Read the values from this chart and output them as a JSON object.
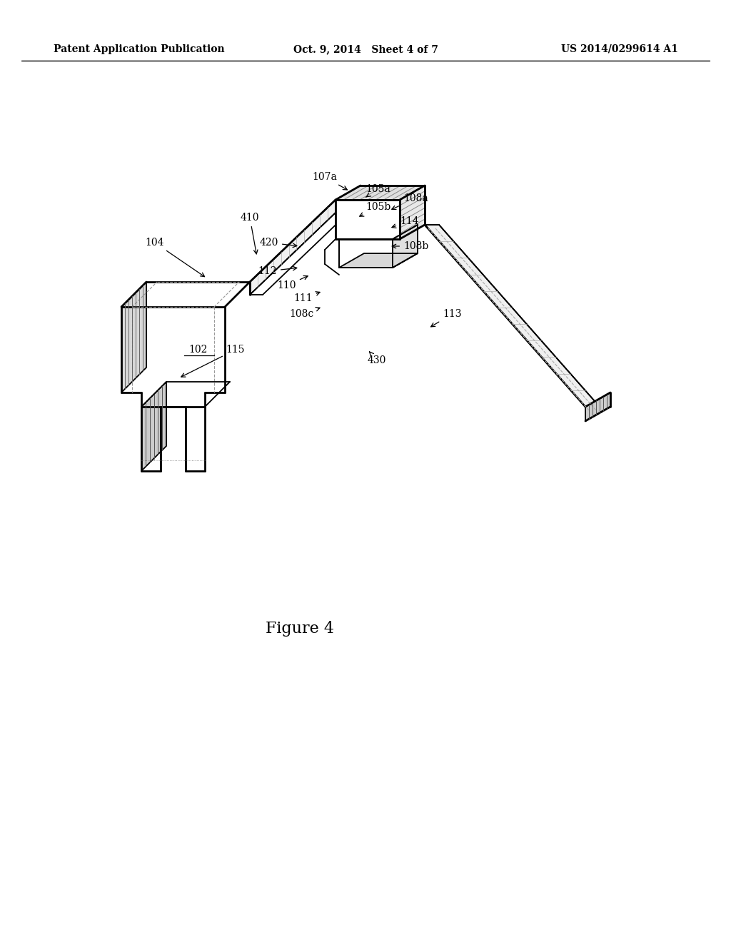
{
  "title": "",
  "figure_label": "Figure 4",
  "figure_label_fontsize": 16,
  "header_left": "Patent Application Publication",
  "header_center": "Oct. 9, 2014   Sheet 4 of 7",
  "header_right": "US 2014/0299614 A1",
  "header_fontsize": 10,
  "bg_color": "#ffffff",
  "line_color": "#000000"
}
